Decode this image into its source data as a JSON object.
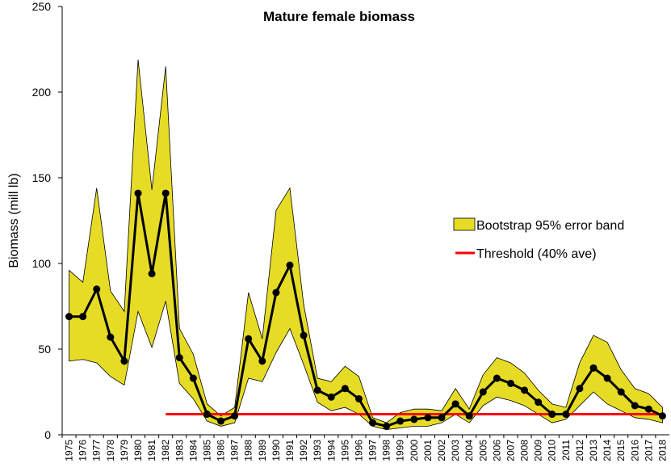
{
  "chart_data": {
    "type": "line",
    "title": "Mature female biomass",
    "ylabel": "Biomass (mill lb)",
    "categories": [
      "1975",
      "1976",
      "1977",
      "1978",
      "1979",
      "1980",
      "1981",
      "1982",
      "1983",
      "1984",
      "1985",
      "1986",
      "1987",
      "1988",
      "1989",
      "1990",
      "1991",
      "1992",
      "1993",
      "1994",
      "1995",
      "1996",
      "1997",
      "1998",
      "1999",
      "2000",
      "2001",
      "2002",
      "2003",
      "2004",
      "2005",
      "2006",
      "2007",
      "2008",
      "2009",
      "2010",
      "2011",
      "2012",
      "2013",
      "2014",
      "2015",
      "2016",
      "2017",
      "2018"
    ],
    "mean": {
      "color": "#000000",
      "values": [
        69,
        69,
        85,
        57,
        43,
        141,
        94,
        141,
        45,
        33,
        12,
        8,
        11,
        56,
        43,
        83,
        99,
        58,
        26,
        22,
        27,
        21,
        7,
        5,
        8,
        9,
        10,
        10,
        18,
        11,
        25,
        33,
        30,
        26,
        19,
        12,
        12,
        27,
        39,
        33,
        25,
        17,
        15,
        11
      ]
    },
    "band": {
      "name": "Bootstrap 95% error band",
      "color": "#e6dc26",
      "upper": [
        96,
        89,
        144,
        84,
        72,
        219,
        143,
        215,
        62,
        47,
        18,
        11,
        16,
        83,
        56,
        131,
        144,
        76,
        33,
        31,
        40,
        34,
        10,
        7,
        13,
        15,
        15,
        14,
        27,
        15,
        35,
        45,
        42,
        36,
        26,
        18,
        16,
        42,
        58,
        54,
        38,
        27,
        24,
        16
      ],
      "lower": [
        43,
        44,
        42,
        34,
        29,
        72,
        51,
        78,
        30,
        21,
        8,
        5,
        7,
        33,
        31,
        48,
        62,
        41,
        19,
        14,
        16,
        12,
        5,
        3,
        4,
        5,
        5,
        7,
        12,
        7,
        17,
        22,
        20,
        17,
        12,
        7,
        9,
        17,
        25,
        18,
        14,
        10,
        9,
        7
      ]
    },
    "threshold": {
      "name": "Threshold (40% ave)",
      "color": "#ff0000",
      "values": [
        null,
        null,
        null,
        null,
        null,
        null,
        null,
        12,
        12,
        12,
        12,
        12,
        12,
        12,
        12,
        12,
        12,
        12,
        12,
        12,
        12,
        12,
        12,
        12,
        12,
        12,
        12,
        12,
        12,
        12,
        12,
        12,
        12,
        12,
        12,
        12,
        12,
        12,
        12,
        12,
        12,
        12,
        12,
        12
      ]
    },
    "ylim": [
      0,
      250
    ],
    "yticks": [
      0,
      50,
      100,
      150,
      200,
      250
    ],
    "grid": false,
    "legend": "right"
  }
}
